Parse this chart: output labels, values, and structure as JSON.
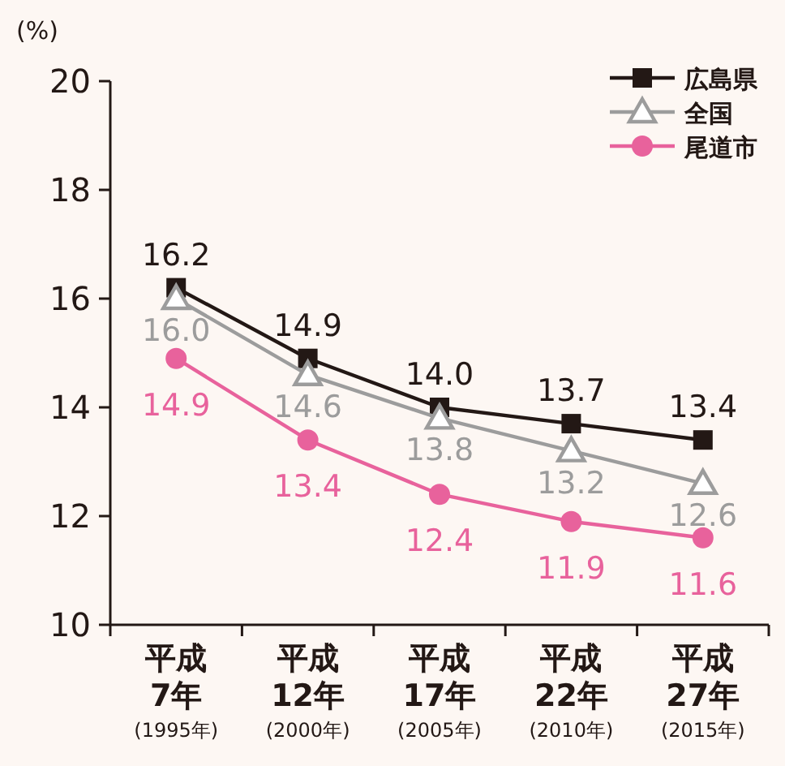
{
  "chart_data": {
    "type": "line",
    "ylabel": "(%)",
    "categories": [
      "平成\n7年\n(1995年)",
      "平成\n12年\n(2000年)",
      "平成\n17年\n(2005年)",
      "平成\n22年\n(2010年)",
      "平成\n27年\n(2015年)"
    ],
    "series": [
      {
        "name": "広島県",
        "color": "#231815",
        "marker": "square",
        "values": [
          16.2,
          14.9,
          14.0,
          13.7,
          13.4
        ],
        "value_labels": [
          "16.2",
          "14.9",
          "14.0",
          "13.7",
          "13.4"
        ]
      },
      {
        "name": "全国",
        "color": "#9c9c9c",
        "marker": "triangle",
        "values": [
          16.0,
          14.6,
          13.8,
          13.2,
          12.6
        ],
        "value_labels": [
          "16.0",
          "14.6",
          "13.8",
          "13.2",
          "12.6"
        ]
      },
      {
        "name": "尾道市",
        "color": "#e8629c",
        "marker": "circle",
        "values": [
          14.9,
          13.4,
          12.4,
          11.9,
          11.6
        ],
        "value_labels": [
          "14.9",
          "13.4",
          "12.4",
          "11.9",
          "11.6"
        ]
      }
    ],
    "ylim": [
      10,
      20
    ],
    "yticks": [
      10,
      12,
      14,
      16,
      18,
      20
    ],
    "legend": "top right",
    "grid": false
  }
}
